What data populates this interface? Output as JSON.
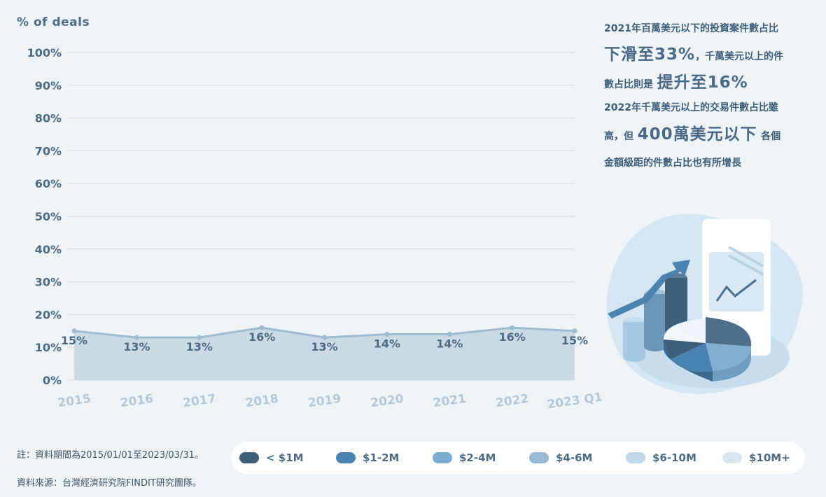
{
  "chart_data": {
    "type": "area",
    "ylabel": "% of deals",
    "ylim": [
      0,
      100
    ],
    "yticks": [
      "0%",
      "10%",
      "20%",
      "30%",
      "40%",
      "50%",
      "60%",
      "70%",
      "80%",
      "90%",
      "100%"
    ],
    "categories": [
      "2015",
      "2016",
      "2017",
      "2018",
      "2019",
      "2020",
      "2021",
      "2022",
      "2023 Q1"
    ],
    "values": [
      15,
      13,
      13,
      16,
      13,
      14,
      14,
      16,
      15
    ],
    "data_labels": [
      "15%",
      "13%",
      "13%",
      "16%",
      "13%",
      "14%",
      "14%",
      "16%",
      "15%"
    ],
    "grid": true,
    "legend": [
      {
        "label": "< $1M",
        "color": "#3d5d78"
      },
      {
        "label": "$1-2M",
        "color": "#4a82b0"
      },
      {
        "label": "$2-4M",
        "color": "#78acd0"
      },
      {
        "label": "$4-6M",
        "color": "#97b8d3"
      },
      {
        "label": "$6-10M",
        "color": "#bcd8ea"
      },
      {
        "label": "$10M+",
        "color": "#d9e6f0"
      }
    ],
    "legend_position": "bottom"
  },
  "info": {
    "line1": "2021年百萬美元以下的投資案件數占比",
    "line2_big": "下滑至33%",
    "line2_small": "，千萬美元以上的件",
    "line3_small": "數占比則是",
    "line3_big": "提升至16%",
    "line4": "2022年千萬美元以上的交易件數占比雖",
    "line5_small_a": "高，但",
    "line5_big": "400萬美元以下",
    "line5_small_b": "各個",
    "line6": "金額級距的件數占比也有所增長"
  },
  "notes": {
    "period": "註：資料期間為2015/01/01至2023/03/31。",
    "source": "資料來源：台灣經濟研究院FINDIT研究團隊。"
  },
  "colors": {
    "area_fill": "#c9dae5",
    "line": "#9fbbd0",
    "grid": "#d3dde6",
    "background": "#eef3f8"
  }
}
